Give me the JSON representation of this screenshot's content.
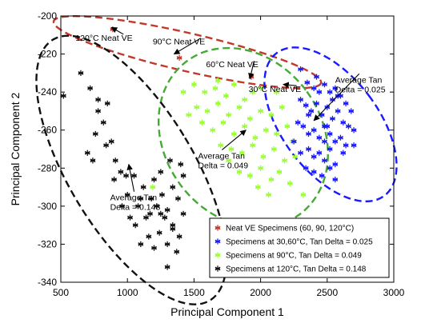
{
  "chart_data": {
    "type": "scatter",
    "xlabel": "Principal Component 1",
    "ylabel": "Principal Component 2",
    "xlim": [
      500,
      3000
    ],
    "ylim": [
      -340,
      -200
    ],
    "xticks": [
      "500",
      "1000",
      "1500",
      "2000",
      "2500",
      "3000"
    ],
    "yticks": [
      "-200",
      "-220",
      "-240",
      "-260",
      "-280",
      "-300",
      "-320",
      "-340"
    ],
    "tick_values_x": [
      500,
      1000,
      1500,
      2000,
      2500,
      3000
    ],
    "tick_values_y": [
      -200,
      -220,
      -240,
      -260,
      -280,
      -300,
      -320,
      -340
    ],
    "grid": false,
    "legend_placement": "bottom-right",
    "series": [
      {
        "name": "Neat VE Specimens (60, 90, 120°C)",
        "color": "#c0392b",
        "marker": "asterisk",
        "points": [
          [
            890,
            -207
          ],
          [
            1390,
            -222
          ],
          [
            1930,
            -232
          ]
        ]
      },
      {
        "name": "Specimens at 30,60°C, Tan Delta = 0.025",
        "color": "#1a1aff",
        "marker": "asterisk",
        "points": [
          [
            2300,
            -228
          ],
          [
            2350,
            -235
          ],
          [
            2420,
            -232
          ],
          [
            2480,
            -236
          ],
          [
            2520,
            -240
          ],
          [
            2560,
            -238
          ],
          [
            2600,
            -242
          ],
          [
            2640,
            -246
          ],
          [
            2680,
            -250
          ],
          [
            2300,
            -244
          ],
          [
            2340,
            -247
          ],
          [
            2380,
            -250
          ],
          [
            2420,
            -246
          ],
          [
            2460,
            -252
          ],
          [
            2500,
            -248
          ],
          [
            2540,
            -254
          ],
          [
            2580,
            -250
          ],
          [
            2620,
            -256
          ],
          [
            2660,
            -258
          ],
          [
            2700,
            -260
          ],
          [
            2280,
            -256
          ],
          [
            2320,
            -258
          ],
          [
            2360,
            -262
          ],
          [
            2400,
            -260
          ],
          [
            2440,
            -264
          ],
          [
            2480,
            -258
          ],
          [
            2520,
            -262
          ],
          [
            2560,
            -266
          ],
          [
            2600,
            -264
          ],
          [
            2640,
            -268
          ],
          [
            2360,
            -270
          ],
          [
            2400,
            -274
          ],
          [
            2440,
            -272
          ],
          [
            2480,
            -276
          ],
          [
            2520,
            -270
          ],
          [
            2560,
            -278
          ],
          [
            2400,
            -282
          ],
          [
            2460,
            -284
          ],
          [
            2520,
            -280
          ],
          [
            2560,
            -286
          ],
          [
            2250,
            -266
          ],
          [
            2300,
            -272
          ],
          [
            2580,
            -242
          ],
          [
            2440,
            -240
          ],
          [
            2360,
            -252
          ],
          [
            2500,
            -258
          ],
          [
            2620,
            -272
          ],
          [
            2700,
            -268
          ],
          [
            2340,
            -280
          ],
          [
            2480,
            -266
          ],
          [
            2540,
            -244
          ],
          [
            2400,
            -238
          ]
        ]
      },
      {
        "name": "Specimens at 90°C, Tan Delta = 0.049",
        "color": "#99ff33",
        "marker": "asterisk",
        "points": [
          [
            1420,
            -240
          ],
          [
            1500,
            -236
          ],
          [
            1580,
            -240
          ],
          [
            1660,
            -238
          ],
          [
            1740,
            -242
          ],
          [
            1800,
            -236
          ],
          [
            1880,
            -244
          ],
          [
            1940,
            -240
          ],
          [
            2000,
            -238
          ],
          [
            1520,
            -248
          ],
          [
            1600,
            -250
          ],
          [
            1680,
            -246
          ],
          [
            1760,
            -252
          ],
          [
            1840,
            -248
          ],
          [
            1920,
            -254
          ],
          [
            2000,
            -250
          ],
          [
            2080,
            -252
          ],
          [
            2160,
            -248
          ],
          [
            1640,
            -260
          ],
          [
            1720,
            -256
          ],
          [
            1800,
            -262
          ],
          [
            1880,
            -258
          ],
          [
            1960,
            -264
          ],
          [
            2040,
            -260
          ],
          [
            2120,
            -262
          ],
          [
            2200,
            -258
          ],
          [
            2240,
            -266
          ],
          [
            1700,
            -268
          ],
          [
            1780,
            -270
          ],
          [
            1860,
            -272
          ],
          [
            1940,
            -268
          ],
          [
            2020,
            -274
          ],
          [
            2100,
            -270
          ],
          [
            2180,
            -276
          ],
          [
            1840,
            -282
          ],
          [
            1920,
            -284
          ],
          [
            2000,
            -280
          ],
          [
            2080,
            -286
          ],
          [
            2140,
            -282
          ],
          [
            2220,
            -288
          ],
          [
            2320,
            -294
          ],
          [
            1760,
            -276
          ],
          [
            2260,
            -274
          ],
          [
            1980,
            -290
          ],
          [
            2060,
            -294
          ],
          [
            1560,
            -256
          ],
          [
            1680,
            -234
          ],
          [
            2120,
            -240
          ],
          [
            1460,
            -252
          ],
          [
            1190,
            -290
          ]
        ]
      },
      {
        "name": "Specimens at 120°C, Tan Delta = 0.148",
        "color": "#111111",
        "marker": "asterisk",
        "points": [
          [
            520,
            -242
          ],
          [
            650,
            -230
          ],
          [
            720,
            -238
          ],
          [
            780,
            -250
          ],
          [
            820,
            -256
          ],
          [
            760,
            -262
          ],
          [
            700,
            -272
          ],
          [
            840,
            -268
          ],
          [
            880,
            -266
          ],
          [
            910,
            -276
          ],
          [
            900,
            -286
          ],
          [
            950,
            -282
          ],
          [
            1000,
            -294
          ],
          [
            1050,
            -284
          ],
          [
            1080,
            -300
          ],
          [
            1120,
            -290
          ],
          [
            1140,
            -306
          ],
          [
            1180,
            -296
          ],
          [
            1200,
            -286
          ],
          [
            1220,
            -300
          ],
          [
            1260,
            -294
          ],
          [
            1280,
            -306
          ],
          [
            1300,
            -302
          ],
          [
            1340,
            -310
          ],
          [
            1380,
            -296
          ],
          [
            1420,
            -304
          ],
          [
            1340,
            -290
          ],
          [
            1240,
            -314
          ],
          [
            1200,
            -322
          ],
          [
            1300,
            -320
          ],
          [
            1370,
            -324
          ],
          [
            1160,
            -316
          ],
          [
            1100,
            -320
          ],
          [
            1060,
            -310
          ],
          [
            1020,
            -306
          ],
          [
            960,
            -300
          ],
          [
            1300,
            -332
          ],
          [
            1420,
            -284
          ],
          [
            1400,
            -278
          ],
          [
            1320,
            -276
          ],
          [
            780,
            -244
          ],
          [
            850,
            -246
          ],
          [
            740,
            -276
          ],
          [
            1100,
            -296
          ],
          [
            1250,
            -282
          ],
          [
            1170,
            -304
          ],
          [
            990,
            -284
          ],
          [
            1340,
            -312
          ],
          [
            1250,
            -304
          ],
          [
            1390,
            -316
          ]
        ]
      }
    ],
    "annotations": [
      {
        "text": "120°C Neat VE",
        "x": 610,
        "y": -213,
        "arrow_to": [
          880,
          -206
        ]
      },
      {
        "text": "90°C Neat VE",
        "x": 1190,
        "y": -215,
        "arrow_to": [
          1350,
          -220
        ]
      },
      {
        "text": "60°C Neat VE",
        "x": 1590,
        "y": -227,
        "arrow_to": [
          1920,
          -233
        ]
      },
      {
        "text": "30°C Neat VE",
        "x": 1910,
        "y": -240,
        "arrow_to": [
          2170,
          -236
        ]
      },
      {
        "lines": [
          "Average Tan",
          "Delta = 0.025"
        ],
        "x": 2560,
        "y": -235,
        "arrow_to": [
          2400,
          -255
        ]
      },
      {
        "lines": [
          "Average Tan",
          "Delta = 0.049"
        ],
        "x": 1530,
        "y": -275,
        "arrow_to": [
          1890,
          -260
        ]
      },
      {
        "lines": [
          "Average Tan",
          "Delta = 0.148"
        ],
        "x": 870,
        "y": -297,
        "arrow_to": [
          1010,
          -278
        ]
      }
    ],
    "clusters": [
      {
        "color": "#c0392b",
        "cx": 1450,
        "cy": -219,
        "rx": 1030,
        "ry": 10,
        "angle": 13
      },
      {
        "color": "#1a1aff",
        "cx": 2525,
        "cy": -257,
        "rx": 360,
        "ry": 47,
        "angle": -37
      },
      {
        "color": "#44aa33",
        "cx": 1870,
        "cy": -264,
        "rx": 590,
        "ry": 50,
        "angle": -36
      },
      {
        "color": "#111111",
        "cx": 1030,
        "cy": -281,
        "rx": 470,
        "ry": 80,
        "angle": -31
      }
    ]
  }
}
